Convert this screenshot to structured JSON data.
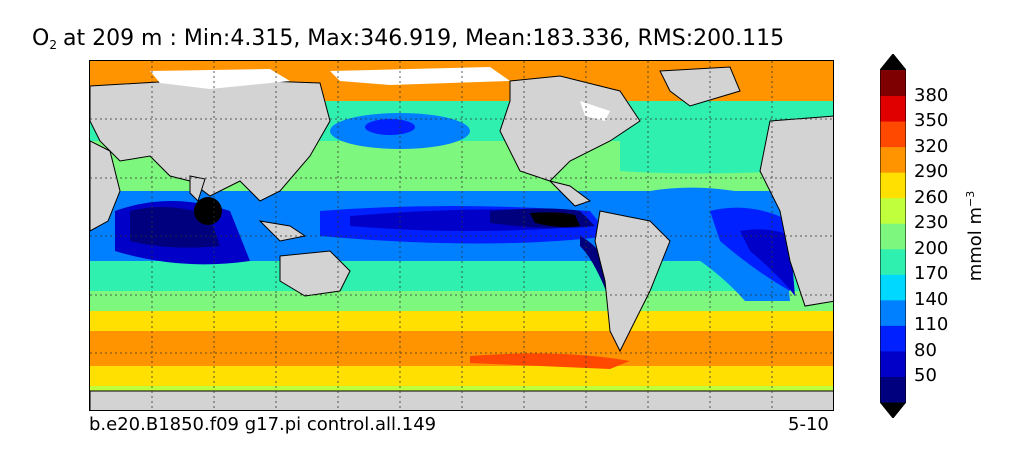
{
  "title": {
    "variable": "O",
    "subscript": "2",
    "text": "at 209 m : Min:4.315, Max:346.919, Mean:183.336, RMS:200.115"
  },
  "footer": {
    "case": "b.e20.B1850.f09 g17.pi control.all.149",
    "years": "5-10"
  },
  "colorbar": {
    "unit_base": "mmol m",
    "unit_exp": "−3",
    "ticks": [
      "50",
      "80",
      "110",
      "140",
      "170",
      "200",
      "230",
      "260",
      "290",
      "320",
      "350",
      "380"
    ],
    "colors": [
      "#00007f",
      "#0000c8",
      "#0020ff",
      "#0080ff",
      "#00d8ff",
      "#30f0b0",
      "#7df77d",
      "#c0ff3c",
      "#ffe000",
      "#ff9400",
      "#ff4800",
      "#e00000",
      "#7f0000"
    ]
  },
  "map": {
    "land_color": "#d3d3d3",
    "missing_color": "#ffffff"
  }
}
